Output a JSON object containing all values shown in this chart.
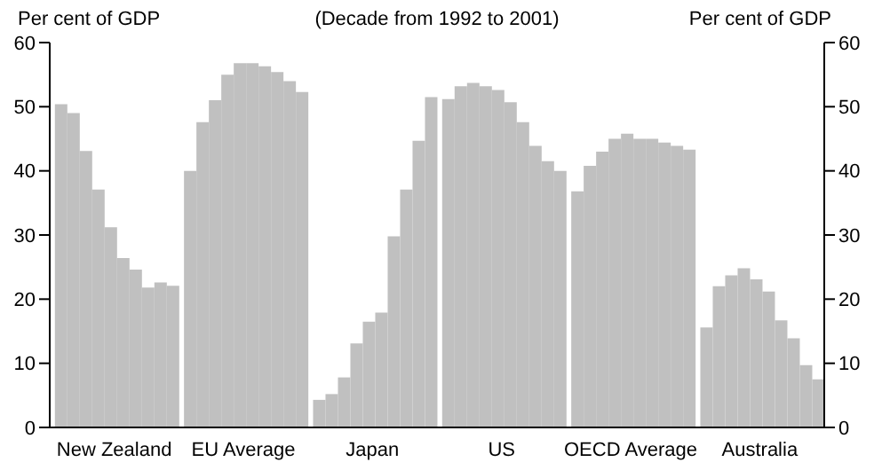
{
  "chart_data": {
    "type": "bar",
    "title": "(Decade from 1992 to 2001)",
    "ylabel": "Per cent of GDP",
    "y2label": "Per cent of GDP",
    "categories": [
      "New Zealand",
      "EU Average",
      "Japan",
      "US",
      "OECD Average",
      "Australia"
    ],
    "series": [
      {
        "color": "#c0c0c0",
        "values": [
          50.4,
          40.0,
          4.3,
          51.2,
          36.8,
          15.6
        ]
      },
      {
        "color": "#c0c0c0",
        "values": [
          49.0,
          47.6,
          5.2,
          53.2,
          40.8,
          22.0
        ]
      },
      {
        "color": "#c0c0c0",
        "values": [
          43.1,
          51.0,
          7.8,
          53.7,
          43.0,
          23.7
        ]
      },
      {
        "color": "#c0c0c0",
        "values": [
          37.1,
          55.0,
          13.1,
          53.2,
          45.0,
          24.8
        ]
      },
      {
        "color": "#c0c0c0",
        "values": [
          31.2,
          56.8,
          16.5,
          52.6,
          45.8,
          23.1
        ]
      },
      {
        "color": "#c0c0c0",
        "values": [
          26.4,
          56.8,
          17.9,
          50.7,
          45.0,
          21.2
        ]
      },
      {
        "color": "#c0c0c0",
        "values": [
          24.6,
          56.3,
          29.8,
          47.6,
          45.0,
          16.7
        ]
      },
      {
        "color": "#c0c0c0",
        "values": [
          21.8,
          55.4,
          37.1,
          43.9,
          44.4,
          13.9
        ]
      },
      {
        "color": "#c0c0c0",
        "values": [
          22.6,
          54.0,
          44.7,
          41.5,
          43.9,
          9.7
        ]
      },
      {
        "color": "#c0c0c0",
        "values": [
          22.1,
          52.3,
          51.5,
          40.0,
          43.3,
          7.5
        ]
      }
    ],
    "ylim": [
      0,
      60
    ],
    "yticks": [
      0,
      10,
      20,
      30,
      40,
      50,
      60
    ],
    "y2lim": [
      0,
      60
    ],
    "y2ticks": [
      0,
      10,
      20,
      30,
      40,
      50,
      60
    ],
    "grid": false,
    "legend": false
  }
}
